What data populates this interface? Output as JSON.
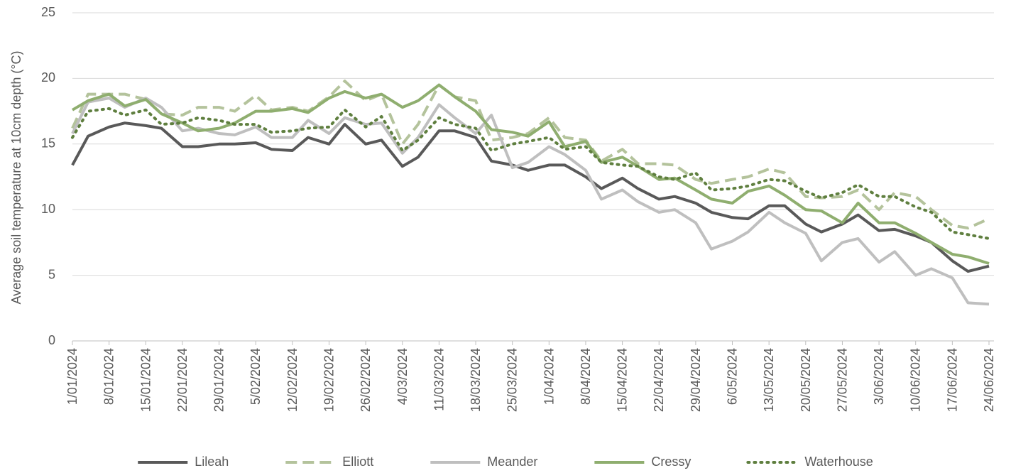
{
  "chart_data": {
    "type": "line",
    "y_label": "Average soil temperature at 10cm depth (°C)",
    "x": [
      "1/01/2024",
      "4/01/2024",
      "8/01/2024",
      "11/01/2024",
      "15/01/2024",
      "18/01/2024",
      "22/01/2024",
      "25/01/2024",
      "29/01/2024",
      "1/02/2024",
      "5/02/2024",
      "8/02/2024",
      "12/02/2024",
      "15/02/2024",
      "19/02/2024",
      "22/02/2024",
      "26/02/2024",
      "29/02/2024",
      "4/03/2024",
      "7/03/2024",
      "11/03/2024",
      "14/03/2024",
      "18/03/2024",
      "21/03/2024",
      "25/03/2024",
      "28/03/2024",
      "1/04/2024",
      "4/04/2024",
      "8/04/2024",
      "11/04/2024",
      "15/04/2024",
      "18/04/2024",
      "22/04/2024",
      "25/04/2024",
      "29/04/2024",
      "2/05/2024",
      "6/05/2024",
      "9/05/2024",
      "13/05/2024",
      "16/05/2024",
      "20/05/2024",
      "23/05/2024",
      "27/05/2024",
      "30/05/2024",
      "3/06/2024",
      "6/06/2024",
      "10/06/2024",
      "13/06/2024",
      "17/06/2024",
      "20/06/2024",
      "24/06/2024"
    ],
    "series": [
      {
        "name": "Lileah",
        "color": "#595959",
        "dash": "solid",
        "values": [
          13.4,
          15.6,
          16.3,
          16.6,
          16.4,
          16.2,
          14.8,
          14.8,
          15.0,
          15.0,
          15.1,
          14.6,
          14.5,
          15.5,
          15.0,
          16.5,
          15.0,
          15.3,
          13.3,
          14.0,
          16.0,
          16.0,
          15.5,
          13.7,
          13.4,
          13.0,
          13.4,
          13.4,
          12.5,
          11.6,
          12.4,
          11.6,
          10.8,
          11.0,
          10.5,
          9.8,
          9.4,
          9.3,
          10.3,
          10.3,
          8.9,
          8.3,
          8.9,
          9.6,
          8.4,
          8.5,
          8.0,
          7.5,
          6.1,
          5.3,
          5.7
        ]
      },
      {
        "name": "Elliott",
        "color": "#b4c39c",
        "dash": "dash",
        "values": [
          16.2,
          18.8,
          18.8,
          18.8,
          18.4,
          17.3,
          17.2,
          17.8,
          17.8,
          17.5,
          18.7,
          17.6,
          17.8,
          17.5,
          18.6,
          19.8,
          18.3,
          18.8,
          15.0,
          16.5,
          19.5,
          18.6,
          18.3,
          15.3,
          15.5,
          15.8,
          17.0,
          15.5,
          15.3,
          13.7,
          14.6,
          13.5,
          13.5,
          13.4,
          12.3,
          12.0,
          12.3,
          12.5,
          13.1,
          12.8,
          11.0,
          10.9,
          11.0,
          11.5,
          10.0,
          11.3,
          11.0,
          10.0,
          8.8,
          8.6,
          9.3
        ]
      },
      {
        "name": "Meander",
        "color": "#bfbfbf",
        "dash": "solid",
        "values": [
          15.8,
          18.2,
          18.5,
          17.8,
          18.5,
          17.8,
          16.0,
          16.2,
          15.8,
          15.7,
          16.3,
          15.5,
          15.5,
          16.8,
          15.8,
          17.0,
          16.5,
          16.6,
          14.3,
          15.5,
          18.0,
          17.0,
          15.8,
          17.2,
          13.2,
          13.6,
          14.8,
          14.2,
          13.0,
          10.8,
          11.5,
          10.6,
          9.8,
          10.0,
          9.0,
          7.0,
          7.6,
          8.3,
          9.8,
          9.0,
          8.2,
          6.1,
          7.5,
          7.8,
          6.0,
          6.8,
          5.0,
          5.5,
          4.8,
          2.9,
          2.8
        ]
      },
      {
        "name": "Cressy",
        "color": "#8fae6f",
        "dash": "solid",
        "values": [
          17.6,
          18.3,
          18.8,
          17.9,
          18.4,
          17.3,
          16.6,
          16.0,
          16.2,
          16.6,
          17.5,
          17.5,
          17.7,
          17.4,
          18.5,
          19.0,
          18.5,
          18.8,
          17.8,
          18.3,
          19.5,
          18.6,
          17.5,
          16.1,
          15.9,
          15.6,
          16.7,
          14.8,
          15.2,
          13.6,
          14.0,
          13.3,
          12.3,
          12.4,
          11.5,
          10.8,
          10.5,
          11.4,
          11.8,
          11.1,
          10.0,
          9.9,
          9.0,
          10.5,
          9.0,
          9.0,
          8.2,
          7.5,
          6.6,
          6.4,
          5.9
        ]
      },
      {
        "name": "Waterhouse",
        "color": "#5f7f3f",
        "dash": "dot",
        "values": [
          15.5,
          17.5,
          17.7,
          17.2,
          17.6,
          16.5,
          16.6,
          17.0,
          16.8,
          16.5,
          16.5,
          15.9,
          16.0,
          16.2,
          16.3,
          17.6,
          16.3,
          17.1,
          14.5,
          15.3,
          17.0,
          16.5,
          16.2,
          14.5,
          15.0,
          15.2,
          15.5,
          14.6,
          14.8,
          13.6,
          13.4,
          13.3,
          12.5,
          12.3,
          12.8,
          11.5,
          11.6,
          11.8,
          12.3,
          12.2,
          11.4,
          10.9,
          11.3,
          11.9,
          11.0,
          11.0,
          10.2,
          9.8,
          8.3,
          8.1,
          7.8
        ]
      }
    ],
    "xlim": [
      "1/01/2024",
      "24/06/2024"
    ],
    "xticks": [
      "1/01/2024",
      "8/01/2024",
      "15/01/2024",
      "22/01/2024",
      "29/01/2024",
      "5/02/2024",
      "12/02/2024",
      "19/02/2024",
      "26/02/2024",
      "4/03/2024",
      "11/03/2024",
      "18/03/2024",
      "25/03/2024",
      "1/04/2024",
      "8/04/2024",
      "15/04/2024",
      "22/04/2024",
      "29/04/2024",
      "6/05/2024",
      "13/05/2024",
      "20/05/2024",
      "27/05/2024",
      "3/06/2024",
      "10/06/2024",
      "17/06/2024",
      "24/06/2024"
    ],
    "ylim": [
      0,
      25
    ],
    "yticks": [
      0,
      5,
      10,
      15,
      20,
      25
    ],
    "grid": true,
    "legend": "bottom"
  }
}
